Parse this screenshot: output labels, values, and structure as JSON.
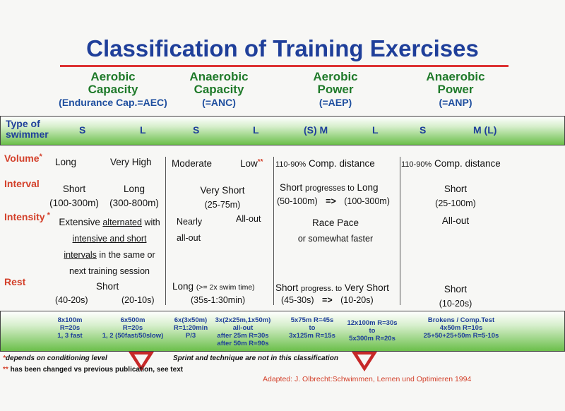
{
  "title": "Classification of Training Exercises",
  "categories": [
    {
      "line1": "Aerobic",
      "line2": "Capacity",
      "sub": "(Endurance Cap.=AEC)"
    },
    {
      "line1": "Anaerobic",
      "line2": "Capacity",
      "sub": "(=ANC)"
    },
    {
      "line1": "Aerobic",
      "line2": "Power",
      "sub": "(=AEP)"
    },
    {
      "line1": "Anaerobic",
      "line2": "Power",
      "sub": "(=ANP)"
    }
  ],
  "type_row": {
    "label1": "Type of",
    "label2": "swimmer",
    "values": [
      "S",
      "L",
      "S",
      "L",
      "(S) M",
      "L",
      "S",
      "M (L)"
    ]
  },
  "rows": {
    "volume": {
      "label": "Volume",
      "star": "*",
      "aec_s": "Long",
      "aec_l": "Very High",
      "anc_s": "Moderate",
      "anc_l": "Low",
      "anc_l_mark": "**",
      "aep_pct": "110-90%",
      "aep_text": "Comp. distance",
      "anp_pct": "110-90%",
      "anp_text": "Comp. distance"
    },
    "interval": {
      "label": "Interval",
      "aec_s": "Short",
      "aec_s_range": "(100-300m)",
      "aec_l": "Long",
      "aec_l_range": "(300-800m)",
      "anc": "Very Short",
      "anc_range": "(25-75m)",
      "aep_a": "Short",
      "aep_mid": "progresses to",
      "aep_b": "Long",
      "aep_range_a": "(50-100m)",
      "aep_arrow": "=>",
      "aep_range_b": "(100-300m)",
      "anp": "Short",
      "anp_range": "(25-100m)"
    },
    "intensity": {
      "label": "Intensity",
      "star": "*",
      "aec_line1a": "Extensive",
      "aec_line1b": "alternated",
      "aec_line1c": "with",
      "aec_line2": "intensive and short",
      "aec_line3a": "intervals",
      "aec_line3b": "in the same or",
      "aec_line4": "next training session",
      "anc_a1": "Nearly",
      "anc_a2": "all-out",
      "anc_b": "All-out",
      "aep_1": "Race Pace",
      "aep_2": "or somewhat faster",
      "anp": "All-out"
    },
    "rest": {
      "label": "Rest",
      "aec": "Short",
      "aec_a": "(40-20s)",
      "aec_b": "(20-10s)",
      "anc": "Long",
      "anc_note": "(>= 2x swim time)",
      "anc_range": "(35s-1:30min)",
      "aep_a": "Short",
      "aep_mid": "progress. to",
      "aep_b": "Very Short",
      "aep_range_a": "(45-30s)",
      "aep_arrow": "=>",
      "aep_range_b": "(10-20s)",
      "anp": "Short",
      "anp_range": "(10-20s)"
    }
  },
  "examples": [
    {
      "lines": [
        "8x100m",
        "R=20s",
        "1, 3 fast"
      ]
    },
    {
      "lines": [
        "6x500m",
        "R=20s",
        "1, 2 (50fast/50slow)"
      ]
    },
    {
      "lines": [
        "6x(3x50m)",
        "R=1:20min",
        "P/3"
      ]
    },
    {
      "lines": [
        "3x(2x25m,1x50m)",
        "all-out",
        "after 25m R=30s",
        "after 50m R=90s"
      ]
    },
    {
      "lines": [
        "5x75m R=45s",
        "to",
        "3x125m R=15s"
      ]
    },
    {
      "lines": [
        "12x100m R=30s",
        "to",
        "5x300m R=20s"
      ]
    },
    {
      "lines": [
        "Brokens / Comp.Test",
        "4x50m R=10s",
        "25+50+25+50m R=5-10s"
      ]
    }
  ],
  "notes": {
    "note1_mark": "*",
    "note1": "depends on conditioning level",
    "note2_mark": "**",
    "note2": "has been changed vs previous publication, see text",
    "note3": "Sprint and technique are not in this classification",
    "adapted": "Adapted:  J. Olbrecht:Schwimmen, Lernen und Optimieren 1994"
  },
  "colors": {
    "title": "#1f3f9a",
    "category": "#1f7a2a",
    "row_label": "#d3402a",
    "band_green": "#6bbf4a",
    "marker": "#c62828"
  }
}
